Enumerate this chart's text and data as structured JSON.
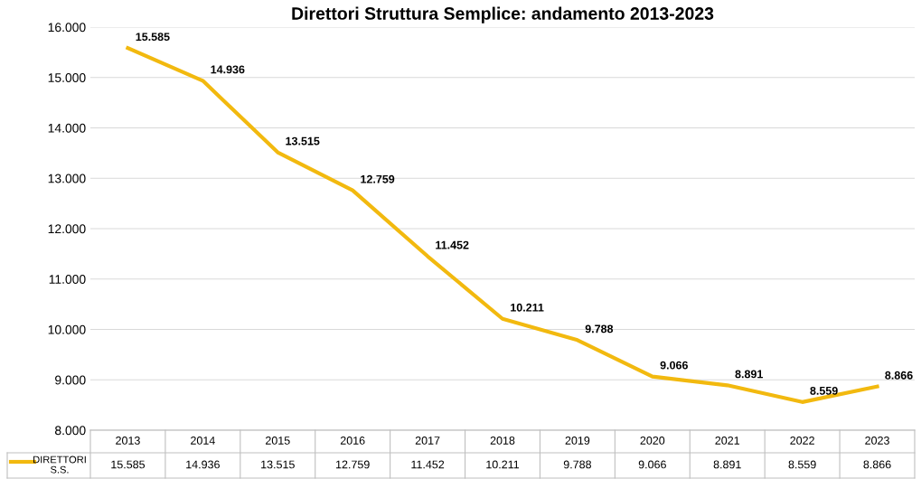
{
  "chart_data": {
    "type": "line",
    "title": "Direttori Struttura Semplice: andamento 2013-2023",
    "categories": [
      "2013",
      "2014",
      "2015",
      "2016",
      "2017",
      "2018",
      "2019",
      "2020",
      "2021",
      "2022",
      "2023"
    ],
    "series": [
      {
        "name": "DIRETTORI S.S.",
        "color": "#f2b90f",
        "values": [
          15585,
          14936,
          13515,
          12759,
          11452,
          10211,
          9788,
          9066,
          8891,
          8559,
          8866
        ],
        "value_labels": [
          "15.585",
          "14.936",
          "13.515",
          "12.759",
          "11.452",
          "10.211",
          "9.788",
          "9.066",
          "8.891",
          "8.559",
          "8.866"
        ]
      }
    ],
    "ylim": [
      8000,
      16000
    ],
    "yticks": [
      {
        "value": 8000,
        "label": "8.000"
      },
      {
        "value": 9000,
        "label": "9.000"
      },
      {
        "value": 10000,
        "label": "10.000"
      },
      {
        "value": 11000,
        "label": "11.000"
      },
      {
        "value": 12000,
        "label": "12.000"
      },
      {
        "value": 13000,
        "label": "13.000"
      },
      {
        "value": 14000,
        "label": "14.000"
      },
      {
        "value": 15000,
        "label": "15.000"
      },
      {
        "value": 16000,
        "label": "16.000"
      }
    ],
    "grid": "y",
    "legend": "bottom",
    "marker": "none",
    "line_style": "solid"
  }
}
